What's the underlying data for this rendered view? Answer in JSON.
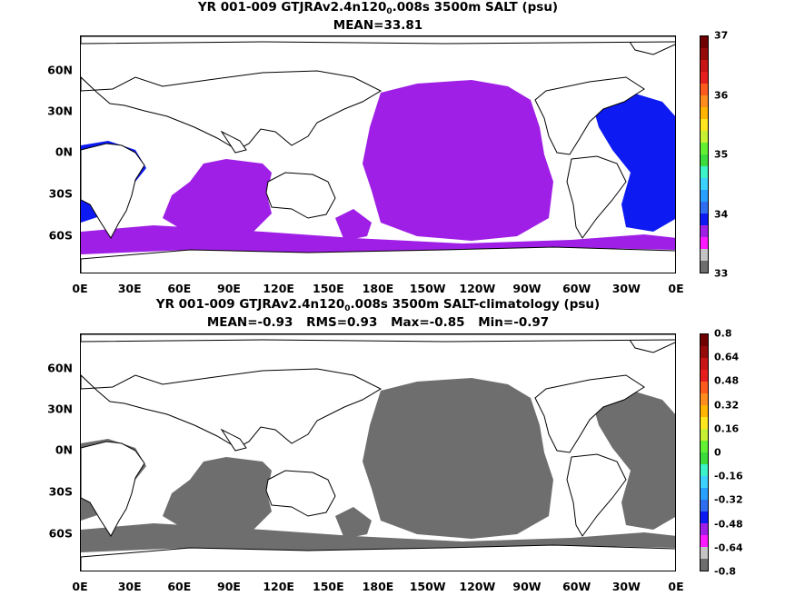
{
  "panels": [
    {
      "id": "top",
      "title_pre": "YR 001-009 GTJRAv2.4n120",
      "title_sub": "0",
      "title_post": ".008s 3500m SALT (psu)",
      "stats": [
        "MEAN=33.81"
      ],
      "fill_color": "#9f1fe6",
      "secondary_fill": "#0d1af2",
      "colorbar_labels": [
        "33",
        "34",
        "35",
        "36",
        "37"
      ],
      "colorbar_colors": [
        "#6e6e6e",
        "#c4c4c4",
        "#ff1aff",
        "#9f1fe6",
        "#0d1af2",
        "#2f6ef0",
        "#28a0ff",
        "#3cd2ff",
        "#3cf2c8",
        "#3cdc3c",
        "#64f032",
        "#c8f032",
        "#ffe61e",
        "#ffb400",
        "#ff8c1e",
        "#ff5a1e",
        "#e61e1e",
        "#c81414",
        "#960a0a",
        "#6e0000"
      ]
    },
    {
      "id": "bottom",
      "title_pre": "YR 001-009 GTJRAv2.4n120",
      "title_sub": "0",
      "title_post": ".008s 3500m SALT-climatology (psu)",
      "stats": [
        "MEAN=-0.93",
        "RMS=0.93",
        "Max=-0.85",
        "Min=-0.97"
      ],
      "fill_color": "#6e6e6e",
      "secondary_fill": "#6e6e6e",
      "colorbar_labels": [
        "-0.8",
        "-0.64",
        "-0.48",
        "-0.32",
        "-0.16",
        "0",
        "0.16",
        "0.32",
        "0.48",
        "0.64",
        "0.8"
      ],
      "colorbar_colors": [
        "#6e6e6e",
        "#c4c4c4",
        "#ff1aff",
        "#9f1fe6",
        "#0d1af2",
        "#2f6ef0",
        "#28a0ff",
        "#3cd2ff",
        "#3cf2c8",
        "#3cdc3c",
        "#64f032",
        "#c8f032",
        "#ffe61e",
        "#ffb400",
        "#ff8c1e",
        "#ff5a1e",
        "#e61e1e",
        "#c81414",
        "#960a0a",
        "#6e0000"
      ]
    }
  ],
  "x_ticks": [
    "0E",
    "30E",
    "60E",
    "90E",
    "120E",
    "150E",
    "180E",
    "150W",
    "120W",
    "90W",
    "60W",
    "30W",
    "0E"
  ],
  "y_ticks": [
    "60N",
    "30N",
    "0N",
    "30S",
    "60S"
  ]
}
